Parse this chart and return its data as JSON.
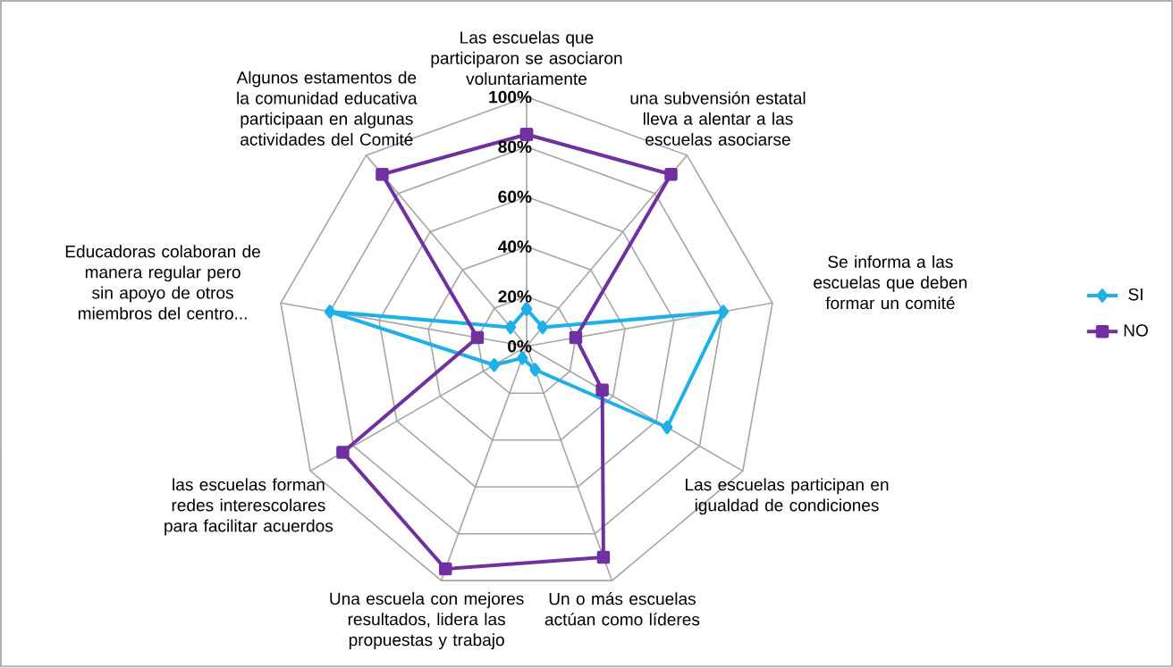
{
  "chart_data": {
    "type": "radar",
    "categories": [
      "Las escuelas que participaron se asociaron voluntariamente",
      "una subvensión estatal lleva a alentar a las escuelas asociarse",
      "Se informa a las escuelas que deben formar un comité",
      "Las escuelas participan en igualdad de condiciones",
      "Un o más escuelas actúan como líderes",
      "Una escuela con mejores resultados, lidera las propuestas y trabajo",
      "las escuelas forman redes interescolares para facilitar acuerdos",
      "Educadoras colaboran de manera regular pero sin apoyo de otros miembros del centro...",
      "Algunos estamentos de la comunidad educativa participaan en algunas actividades del Comité"
    ],
    "series": [
      {
        "name": "SI",
        "color": "#1fb0e8",
        "marker": "diamond",
        "values": [
          15,
          10,
          80,
          65,
          10,
          5,
          15,
          80,
          10
        ]
      },
      {
        "name": "NO",
        "color": "#7030a0",
        "marker": "square",
        "values": [
          85,
          90,
          20,
          35,
          90,
          95,
          85,
          20,
          90
        ]
      }
    ],
    "ylim": [
      0,
      100
    ],
    "yticks": [
      {
        "value": 0,
        "label": "0%"
      },
      {
        "value": 20,
        "label": "20%"
      },
      {
        "value": 40,
        "label": "40%"
      },
      {
        "value": 60,
        "label": "60%"
      },
      {
        "value": 80,
        "label": "80%"
      },
      {
        "value": 100,
        "label": "100%"
      }
    ],
    "grid": true,
    "legend": "right"
  }
}
